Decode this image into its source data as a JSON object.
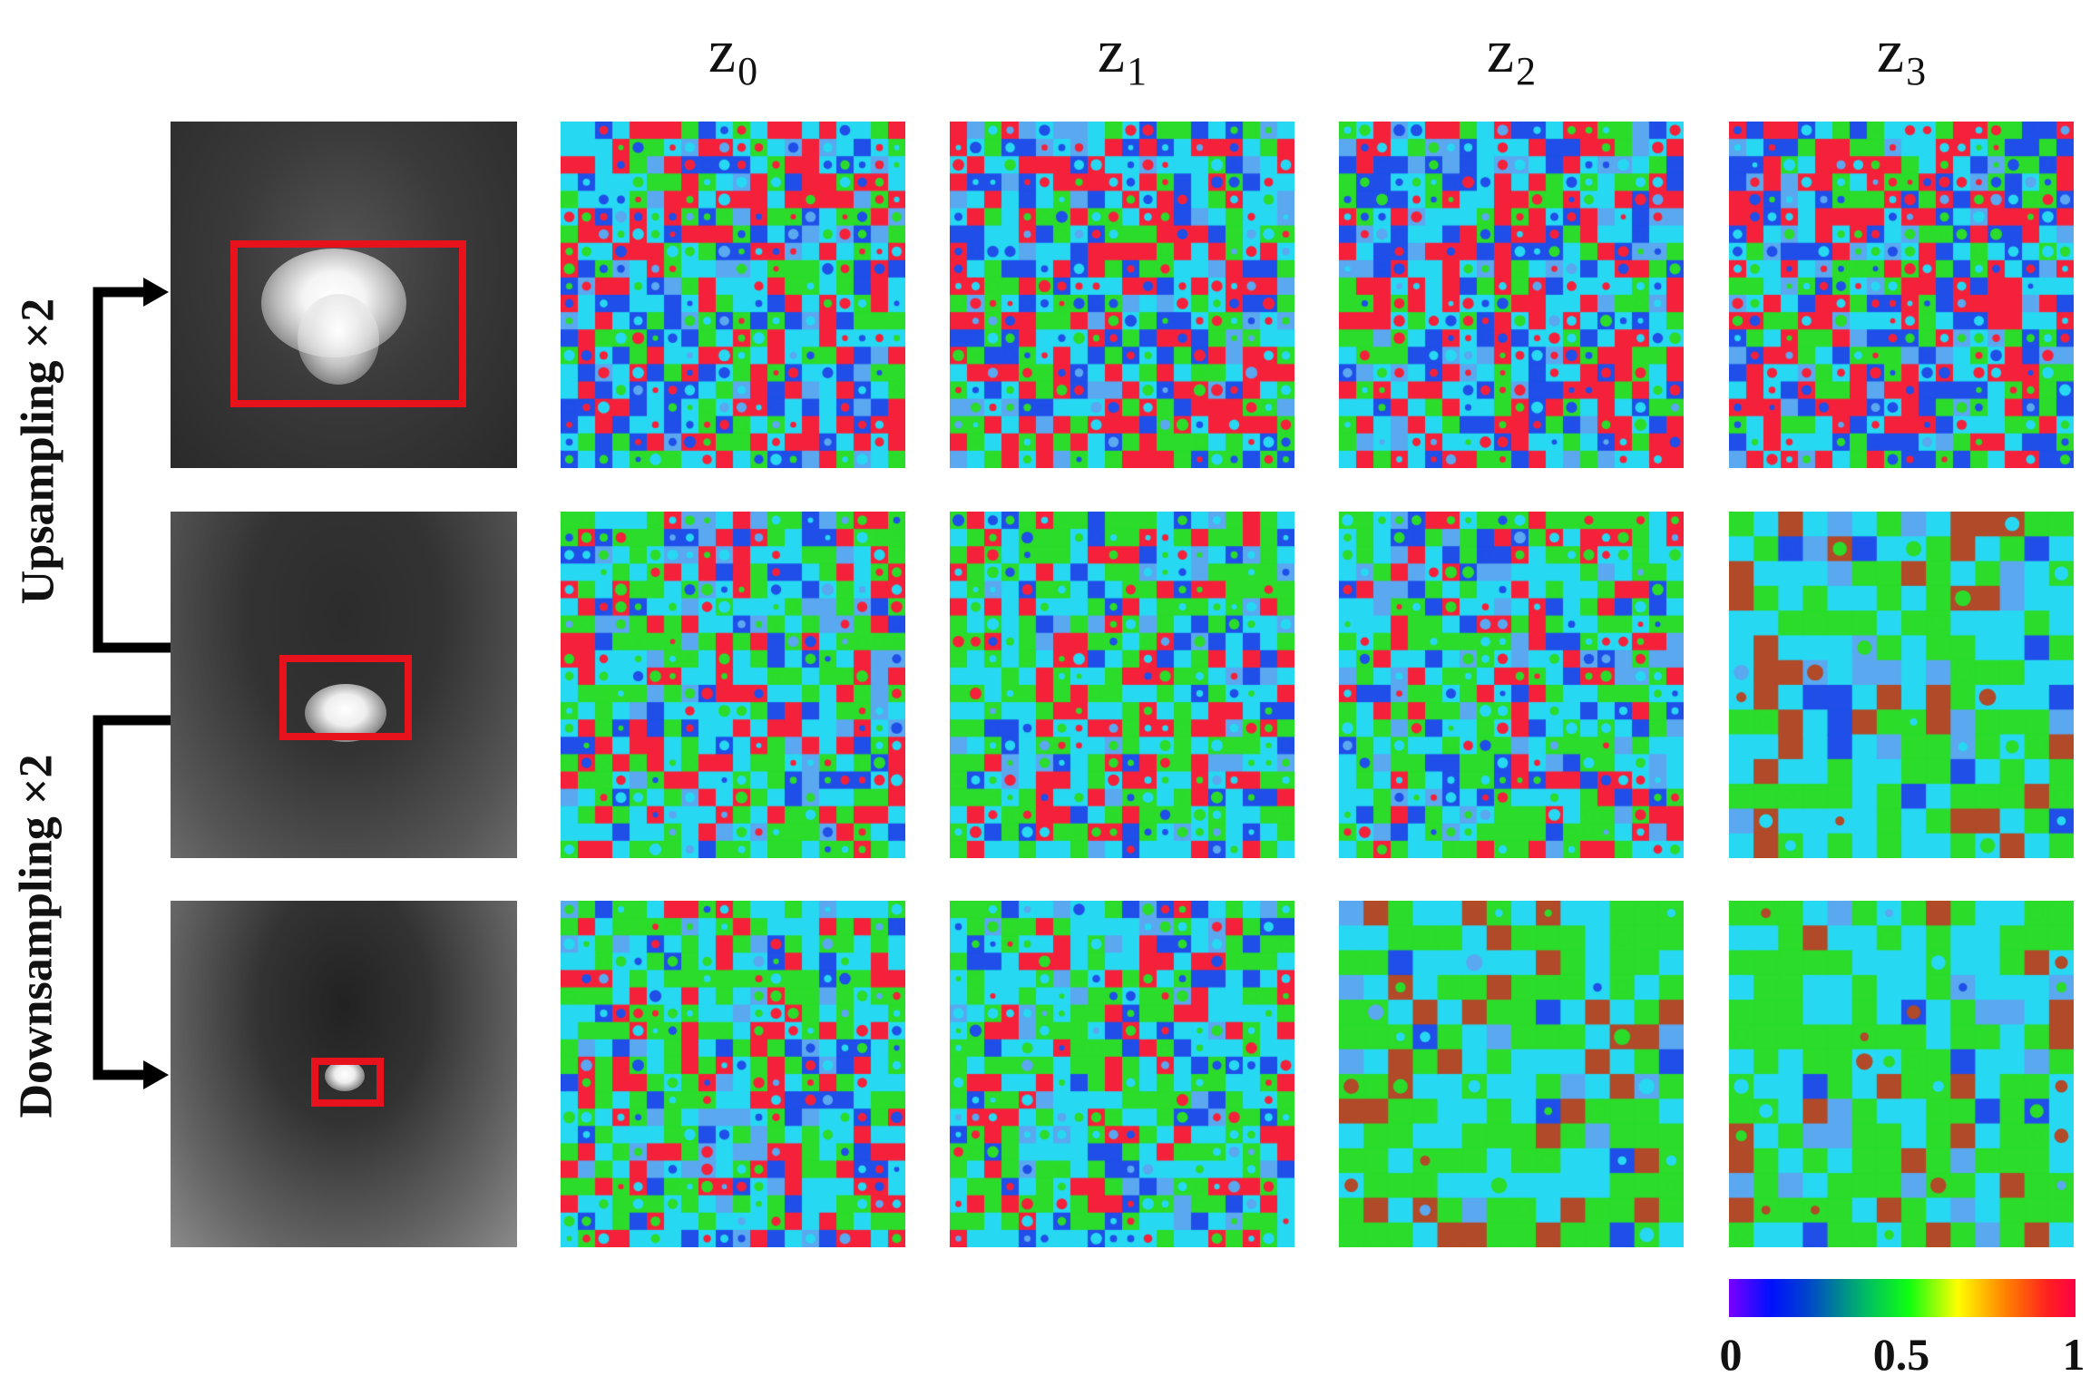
{
  "columns": [
    {
      "base": "z",
      "sub": "0"
    },
    {
      "base": "z",
      "sub": "1"
    },
    {
      "base": "z",
      "sub": "2"
    },
    {
      "base": "z",
      "sub": "3"
    }
  ],
  "side_labels": {
    "up": "Upsampling ×2",
    "down": "Downsampling ×2"
  },
  "colorbar": {
    "ticks": [
      "0",
      "0.5",
      "1"
    ],
    "colors": [
      "#7a00ff",
      "#0010ff",
      "#00c060",
      "#10ff10",
      "#ffff00",
      "#ff8000",
      "#ff0044"
    ]
  },
  "heatmap_colors": {
    "red": "#f5213a",
    "blue": "#1f4fe8",
    "cyan": "#27d8f2",
    "green": "#2bdc2b",
    "brown": "#b04a28",
    "lightblue": "#5aa8f0"
  },
  "roi_color": "#e8121c"
}
